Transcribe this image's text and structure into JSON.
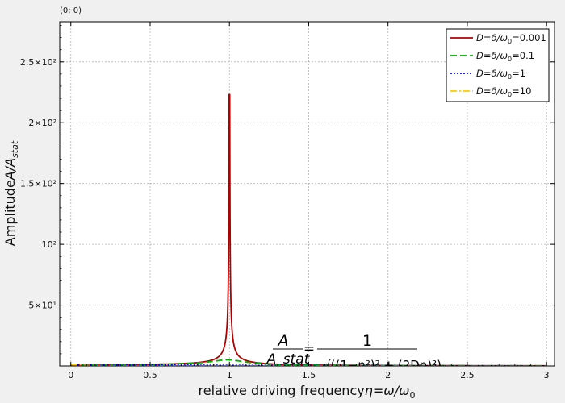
{
  "coord_readout": "(0; 0)",
  "chart_data": {
    "type": "line",
    "xlabel": "relative driving frequencyη=ω/ω₀",
    "ylabel": "AmplitudeA/A_stat",
    "xlim": [
      -0.07,
      3.05
    ],
    "ylim": [
      0,
      283
    ],
    "grid": true,
    "legend_position": "top-right",
    "x_ticks": [
      0,
      0.5,
      1,
      1.5,
      2,
      2.5,
      3
    ],
    "x_tick_labels": [
      "0",
      "0.5",
      "1",
      "1.5",
      "2",
      "2.5",
      "3"
    ],
    "y_ticks": [
      50,
      100,
      150,
      200,
      250
    ],
    "y_tick_labels": [
      "5×10¹",
      "10²",
      "1.5×10²",
      "2×10²",
      "2.5×10²"
    ],
    "formula": {
      "numerator_left": "A",
      "denominator_left": "A_stat",
      "equals": "=",
      "numerator_right": "1",
      "denominator_right": "√((1−η²)² + (2Dη)²)"
    },
    "series": [
      {
        "name": "D=δ/ω₀=0.001",
        "D": 0.001,
        "color": "#b20000",
        "dash": "solid",
        "peak": 223
      },
      {
        "name": "D=δ/ω₀=0.1",
        "D": 0.1,
        "color": "#00b000",
        "dash": "dashed",
        "peak": 5
      },
      {
        "name": "D=δ/ω₀=1",
        "D": 1,
        "color": "#0000d0",
        "dash": "dotted",
        "peak": 1
      },
      {
        "name": "D=δ/ω₀=10",
        "D": 10,
        "color": "#ffcc00",
        "dash": "dashdot",
        "peak": 1
      }
    ]
  }
}
